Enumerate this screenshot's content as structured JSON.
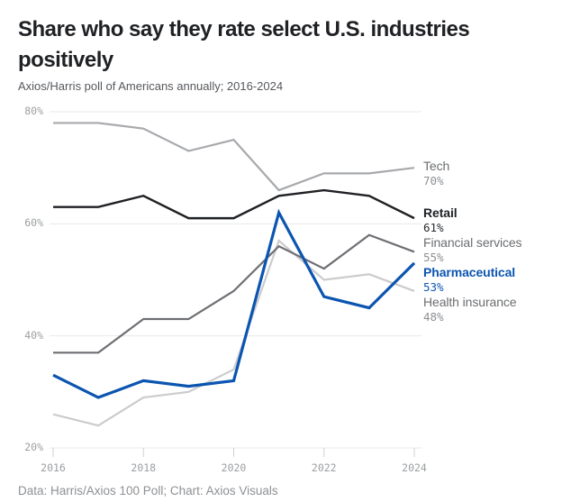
{
  "header": {
    "title": "Share who say they rate select U.S. industries positively",
    "subtitle": "Axios/Harris poll of Americans annually; 2016-2024"
  },
  "footer": {
    "credit": "Data: Harris/Axios 100 Poll; Chart: Axios Visuals"
  },
  "colors": {
    "accent_blue": "#0b55b0",
    "grid": "#e9eaeb",
    "axis_tick_mark": "#cfd1d3",
    "axis_text": "#9b9ea1",
    "title_text": "#1f2124",
    "subtitle_text": "#55585c",
    "credit_text": "#8e9093"
  },
  "chart_data": {
    "type": "line",
    "title": "Share who say they rate select U.S. industries positively",
    "subtitle": "Axios/Harris poll of Americans annually; 2016-2024",
    "x": [
      2016,
      2017,
      2018,
      2019,
      2020,
      2021,
      2022,
      2023,
      2024
    ],
    "x_tick_labels": [
      "2016",
      "2018",
      "2020",
      "2022",
      "2024"
    ],
    "x_tick_years": [
      2016,
      2018,
      2020,
      2022,
      2024
    ],
    "y_ticks": [
      "80%",
      "60%",
      "40%",
      "20%"
    ],
    "y_tick_values": [
      80,
      60,
      40,
      20
    ],
    "ylim": [
      20,
      80
    ],
    "grid": "horizontal-only",
    "legend_position": "right-end-labels",
    "series": [
      {
        "name": "Tech",
        "end_label": "70%",
        "color": "#a7a9ac",
        "label_color": "#6b6d70",
        "value_color": "#8d9093",
        "bold": false,
        "width": 2.2,
        "values": [
          78,
          78,
          77,
          73,
          75,
          66,
          69,
          69,
          70
        ]
      },
      {
        "name": "Retail",
        "end_label": "61%",
        "color": "#1f2124",
        "label_color": "#1f2124",
        "value_color": "#2a2c2f",
        "bold": true,
        "width": 2.4,
        "values": [
          63,
          63,
          65,
          61,
          61,
          65,
          66,
          65,
          61
        ]
      },
      {
        "name": "Financial services",
        "end_label": "55%",
        "color": "#6d6f73",
        "label_color": "#6b6d70",
        "value_color": "#8d9093",
        "bold": false,
        "width": 2.2,
        "values": [
          37,
          37,
          43,
          43,
          48,
          56,
          52,
          58,
          55
        ]
      },
      {
        "name": "Pharmaceutical",
        "end_label": "53%",
        "color": "#0b55b0",
        "label_color": "#0b55b0",
        "value_color": "#0b55b0",
        "bold": true,
        "width": 3.2,
        "values": [
          33,
          29,
          32,
          31,
          32,
          62,
          47,
          45,
          53
        ]
      },
      {
        "name": "Health insurance",
        "end_label": "48%",
        "color": "#cbccce",
        "label_color": "#6b6d70",
        "value_color": "#8d9093",
        "bold": false,
        "width": 2.2,
        "values": [
          26,
          24,
          29,
          30,
          34,
          57,
          50,
          51,
          48
        ]
      }
    ]
  }
}
